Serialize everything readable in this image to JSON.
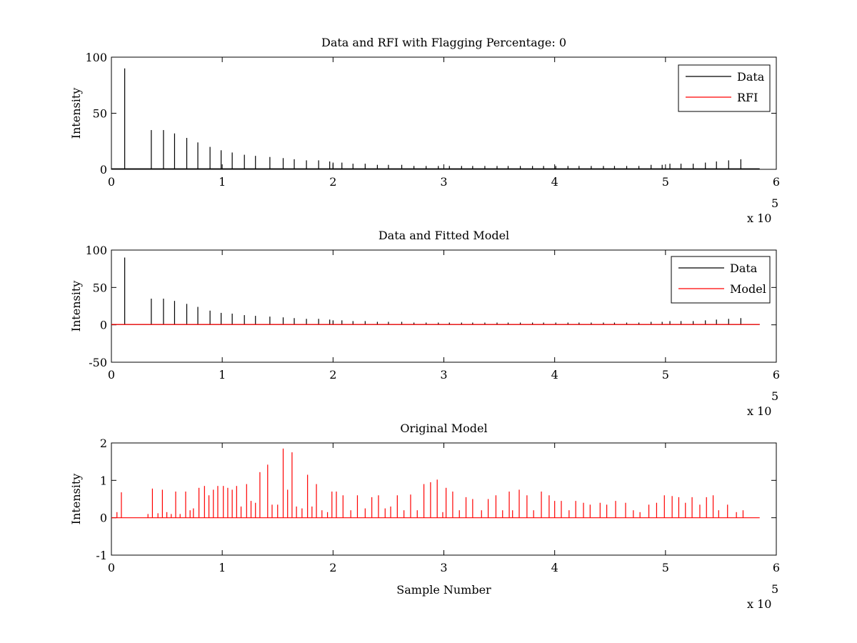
{
  "chart_data": [
    {
      "type": "line",
      "title": "Data and RFI with Flagging Percentage: 0",
      "xlabel": "",
      "ylabel": "Intensity",
      "xlim": [
        0,
        600000
      ],
      "ylim": [
        0,
        100
      ],
      "xticks": [
        0,
        1,
        2,
        3,
        4,
        5,
        6
      ],
      "yticks": [
        0,
        50,
        100
      ],
      "x_exponent_label": "x 10",
      "x_exponent_power": "5",
      "legend_position": "top-right",
      "legend": [
        {
          "name": "Data",
          "color": "#000000"
        },
        {
          "name": "RFI",
          "color": "#ff0000"
        }
      ],
      "series": [
        {
          "name": "Data",
          "color": "#000000",
          "baseline": 0.5,
          "x_end": 585000,
          "spikes_x": [
            12000,
            36000,
            47000,
            57000,
            68000,
            78000,
            89000,
            99000,
            109000,
            120000,
            130000,
            143000,
            155000,
            165000,
            176000,
            187000,
            197000,
            200000,
            208000,
            218000,
            229000,
            240000,
            250000,
            262000,
            273000,
            284000,
            295000,
            305000,
            316000,
            326000,
            337000,
            348000,
            358000,
            369000,
            380000,
            390000,
            401000,
            412000,
            422000,
            433000,
            444000,
            454000,
            465000,
            476000,
            487000,
            497000,
            504000,
            514000,
            525000,
            536000,
            546000,
            557000,
            568000
          ],
          "spikes_y": [
            90,
            35,
            35,
            32,
            28,
            24,
            20,
            17,
            15,
            13,
            12,
            11,
            10,
            9,
            8,
            8,
            7,
            6,
            6,
            5,
            5,
            4,
            4,
            4,
            3,
            3,
            3,
            3,
            3,
            3,
            3,
            3,
            3,
            3,
            3,
            3,
            3,
            3,
            3,
            3,
            3,
            3,
            3,
            3,
            4,
            4,
            5,
            5,
            5,
            6,
            7,
            8,
            9
          ]
        },
        {
          "name": "RFI",
          "color": "#ff0000",
          "spikes_x": [],
          "spikes_y": []
        }
      ]
    },
    {
      "type": "line",
      "title": "Data and Fitted Model",
      "xlabel": "",
      "ylabel": "Intensity",
      "xlim": [
        0,
        600000
      ],
      "ylim": [
        -50,
        100
      ],
      "xticks": [
        0,
        1,
        2,
        3,
        4,
        5,
        6
      ],
      "yticks": [
        -50,
        0,
        50,
        100
      ],
      "x_exponent_label": "x 10",
      "x_exponent_power": "5",
      "legend_position": "top-right",
      "legend": [
        {
          "name": "Data",
          "color": "#000000"
        },
        {
          "name": "Model",
          "color": "#ff0000"
        }
      ],
      "series": [
        {
          "name": "Data",
          "color": "#000000",
          "baseline": 0.5,
          "x_end": 585000,
          "spikes_x": [
            12000,
            36000,
            47000,
            57000,
            68000,
            78000,
            89000,
            99000,
            109000,
            120000,
            130000,
            143000,
            155000,
            165000,
            176000,
            187000,
            197000,
            200000,
            208000,
            218000,
            229000,
            240000,
            250000,
            262000,
            273000,
            284000,
            295000,
            305000,
            316000,
            326000,
            337000,
            348000,
            358000,
            369000,
            380000,
            390000,
            401000,
            412000,
            422000,
            433000,
            444000,
            454000,
            465000,
            476000,
            487000,
            497000,
            504000,
            514000,
            525000,
            536000,
            546000,
            557000,
            568000
          ],
          "spikes_y": [
            90,
            35,
            35,
            32,
            28,
            24,
            19,
            16,
            15,
            13,
            12,
            11,
            10,
            9,
            8,
            8,
            7,
            6,
            6,
            5,
            5,
            4,
            4,
            4,
            3,
            3,
            3,
            3,
            3,
            3,
            3,
            3,
            3,
            3,
            3,
            3,
            3,
            3,
            3,
            3,
            3,
            3,
            3,
            3,
            4,
            4,
            5,
            5,
            5,
            6,
            7,
            8,
            9
          ]
        },
        {
          "name": "Model",
          "color": "#ff0000",
          "baseline": 0.5,
          "x_end": 585000,
          "spikes_x": [],
          "spikes_y": []
        }
      ]
    },
    {
      "type": "line",
      "title": "Original Model",
      "xlabel": "Sample Number",
      "ylabel": "Intensity",
      "xlim": [
        0,
        600000
      ],
      "ylim": [
        -1,
        2
      ],
      "xticks": [
        0,
        1,
        2,
        3,
        4,
        5,
        6
      ],
      "yticks": [
        -1,
        0,
        1,
        2
      ],
      "x_exponent_label": "x 10",
      "x_exponent_power": "5",
      "legend_position": "none",
      "legend": [],
      "series": [
        {
          "name": "",
          "color": "#ff0000",
          "baseline": 0,
          "x_end": 585000,
          "spikes_x": [
            5000,
            9000,
            33000,
            37000,
            42000,
            46000,
            50000,
            54000,
            58000,
            62000,
            67000,
            71000,
            74000,
            79000,
            84000,
            88000,
            92000,
            96000,
            101000,
            105000,
            109000,
            113000,
            117000,
            122000,
            126000,
            130000,
            134000,
            141000,
            145000,
            150000,
            155000,
            159000,
            163000,
            167000,
            172000,
            177000,
            181000,
            185000,
            190000,
            195000,
            199000,
            203000,
            209000,
            216000,
            222000,
            229000,
            235000,
            241000,
            247000,
            252000,
            258000,
            264000,
            270000,
            276000,
            282000,
            288000,
            294000,
            299000,
            302000,
            308000,
            314000,
            320000,
            326000,
            334000,
            340000,
            347000,
            353000,
            359000,
            362000,
            368000,
            375000,
            381000,
            388000,
            395000,
            400000,
            406000,
            413000,
            419000,
            426000,
            432000,
            441000,
            447000,
            455000,
            464000,
            471000,
            477000,
            485000,
            492000,
            499000,
            506000,
            512000,
            518000,
            524000,
            531000,
            537000,
            543000,
            548000,
            556000,
            564000,
            570000
          ],
          "spikes_y": [
            0.15,
            0.68,
            0.1,
            0.78,
            0.12,
            0.75,
            0.15,
            0.1,
            0.7,
            0.1,
            0.7,
            0.2,
            0.25,
            0.8,
            0.85,
            0.6,
            0.75,
            0.85,
            0.85,
            0.8,
            0.75,
            0.85,
            0.3,
            0.9,
            0.45,
            0.4,
            1.22,
            1.42,
            0.35,
            0.35,
            1.85,
            0.75,
            1.75,
            0.3,
            0.25,
            1.15,
            0.3,
            0.9,
            0.2,
            0.15,
            0.7,
            0.7,
            0.6,
            0.2,
            0.6,
            0.25,
            0.55,
            0.6,
            0.25,
            0.3,
            0.6,
            0.2,
            0.62,
            0.2,
            0.9,
            0.95,
            1.02,
            0.15,
            0.8,
            0.7,
            0.2,
            0.55,
            0.5,
            0.2,
            0.5,
            0.6,
            0.2,
            0.7,
            0.2,
            0.75,
            0.6,
            0.2,
            0.7,
            0.6,
            0.45,
            0.45,
            0.2,
            0.45,
            0.4,
            0.35,
            0.4,
            0.35,
            0.45,
            0.4,
            0.2,
            0.15,
            0.35,
            0.4,
            0.6,
            0.58,
            0.55,
            0.4,
            0.55,
            0.35,
            0.55,
            0.6,
            0.2,
            0.35,
            0.15,
            0.2
          ]
        }
      ]
    }
  ]
}
